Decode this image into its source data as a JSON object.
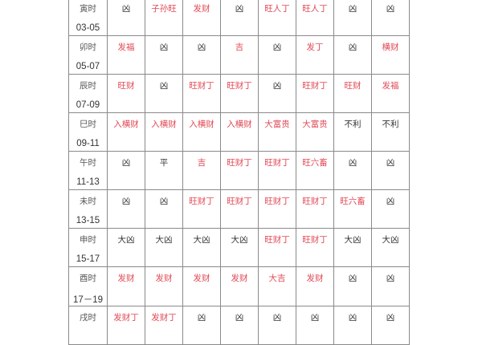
{
  "colors": {
    "good": "#e04a55",
    "neutral": "#333333",
    "grid": "#8a8a8a"
  },
  "rows": [
    {
      "hour": "寅时",
      "range": "03-05",
      "cells": [
        {
          "t": "凶",
          "good": false
        },
        {
          "t": "子孙旺",
          "good": true
        },
        {
          "t": "发财",
          "good": true
        },
        {
          "t": "凶",
          "good": false
        },
        {
          "t": "旺人丁",
          "good": true
        },
        {
          "t": "旺人丁",
          "good": true
        },
        {
          "t": "凶",
          "good": false
        },
        {
          "t": "凶",
          "good": false
        }
      ]
    },
    {
      "hour": "卯时",
      "range": "05-07",
      "cells": [
        {
          "t": "发福",
          "good": true
        },
        {
          "t": "凶",
          "good": false
        },
        {
          "t": "凶",
          "good": false
        },
        {
          "t": "吉",
          "good": true
        },
        {
          "t": "凶",
          "good": false
        },
        {
          "t": "发丁",
          "good": true
        },
        {
          "t": "凶",
          "good": false
        },
        {
          "t": "横财",
          "good": true
        }
      ]
    },
    {
      "hour": "辰时",
      "range": "07-09",
      "cells": [
        {
          "t": "旺财",
          "good": true
        },
        {
          "t": "凶",
          "good": false
        },
        {
          "t": "旺财丁",
          "good": true
        },
        {
          "t": "旺财丁",
          "good": true
        },
        {
          "t": "凶",
          "good": false
        },
        {
          "t": "旺财丁",
          "good": true
        },
        {
          "t": "旺财",
          "good": true
        },
        {
          "t": "发福",
          "good": true
        }
      ]
    },
    {
      "hour": "巳时",
      "range": "09-11",
      "cells": [
        {
          "t": "入横财",
          "good": true
        },
        {
          "t": "入横财",
          "good": true
        },
        {
          "t": "入横财",
          "good": true
        },
        {
          "t": "入横财",
          "good": true
        },
        {
          "t": "大富贵",
          "good": true
        },
        {
          "t": "大富贵",
          "good": true
        },
        {
          "t": "不利",
          "good": false
        },
        {
          "t": "不利",
          "good": false
        }
      ]
    },
    {
      "hour": "午时",
      "range": "11-13",
      "cells": [
        {
          "t": "凶",
          "good": false
        },
        {
          "t": "平",
          "good": false
        },
        {
          "t": "吉",
          "good": true
        },
        {
          "t": "旺财丁",
          "good": true
        },
        {
          "t": "旺财丁",
          "good": true
        },
        {
          "t": "旺六畜",
          "good": true
        },
        {
          "t": "凶",
          "good": false
        },
        {
          "t": "凶",
          "good": false
        }
      ]
    },
    {
      "hour": "未时",
      "range": "13-15",
      "cells": [
        {
          "t": "凶",
          "good": false
        },
        {
          "t": "凶",
          "good": false
        },
        {
          "t": "旺财丁",
          "good": true
        },
        {
          "t": "旺财丁",
          "good": true
        },
        {
          "t": "旺财丁",
          "good": true
        },
        {
          "t": "旺财丁",
          "good": true
        },
        {
          "t": "旺六畜",
          "good": true
        },
        {
          "t": "凶",
          "good": false
        }
      ]
    },
    {
      "hour": "申时",
      "range": "15-17",
      "cells": [
        {
          "t": "大凶",
          "good": false
        },
        {
          "t": "大凶",
          "good": false
        },
        {
          "t": "大凶",
          "good": false
        },
        {
          "t": "大凶",
          "good": false
        },
        {
          "t": "旺财丁",
          "good": true
        },
        {
          "t": "旺财丁",
          "good": true
        },
        {
          "t": "大凶",
          "good": false
        },
        {
          "t": "大凶",
          "good": false
        }
      ]
    },
    {
      "hour": "酉时",
      "range": "17－19",
      "cells": [
        {
          "t": "发财",
          "good": true
        },
        {
          "t": "发财",
          "good": true
        },
        {
          "t": "发财",
          "good": true
        },
        {
          "t": "发财",
          "good": true
        },
        {
          "t": "大吉",
          "good": true
        },
        {
          "t": "发财",
          "good": true
        },
        {
          "t": "凶",
          "good": false
        },
        {
          "t": "凶",
          "good": false
        }
      ]
    },
    {
      "hour": "戌时",
      "range": "",
      "cells": [
        {
          "t": "发财丁",
          "good": true
        },
        {
          "t": "发财丁",
          "good": true
        },
        {
          "t": "凶",
          "good": false
        },
        {
          "t": "凶",
          "good": false
        },
        {
          "t": "凶",
          "good": false
        },
        {
          "t": "凶",
          "good": false
        },
        {
          "t": "凶",
          "good": false
        },
        {
          "t": "凶",
          "good": false
        }
      ]
    }
  ]
}
